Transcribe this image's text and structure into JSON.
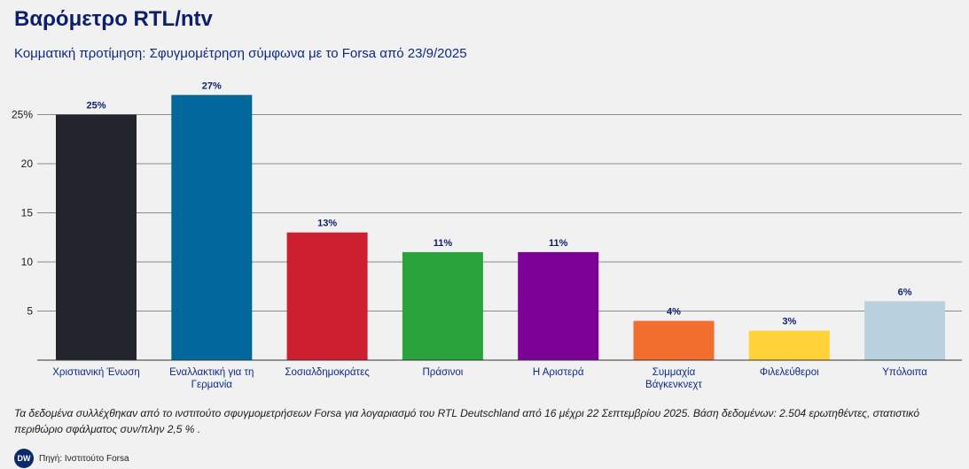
{
  "chart_data": {
    "type": "bar",
    "title": "Βαρόμετρο RTL/ntv",
    "subtitle": "Κομματική προτίμηση: Σφυγμομέτρηση σύμφωνα με το Forsa από 23/9/2025",
    "categories": [
      "Χριστιανική Ένωση",
      "Εναλλακτική για τη Γερμανία",
      "Σοσιαλδημοκράτες",
      "Πράσινοι",
      "Η Αριστερά",
      "Συμμαχία Βάγκενκνεχτ",
      "Φιλελεύθεροι",
      "Υπόλοιπα"
    ],
    "values": [
      25,
      27,
      13,
      11,
      11,
      4,
      3,
      6
    ],
    "value_labels": [
      "25%",
      "27%",
      "13%",
      "11%",
      "11%",
      "4%",
      "3%",
      "6%"
    ],
    "colors": [
      "#22252e",
      "#00689a",
      "#cc1f2f",
      "#2aa33c",
      "#7a0096",
      "#f26e2f",
      "#ffd23a",
      "#b9d0de"
    ],
    "yticks": [
      5,
      10,
      15,
      20,
      25
    ],
    "ytick_labels": [
      "5",
      "10",
      "15",
      "20",
      "25%"
    ],
    "ylim": [
      0,
      27
    ],
    "xlabel": "",
    "ylabel": ""
  },
  "note": "Τα δεδομένα συλλέχθηκαν από το ινστιτούτο σφυγμομετρήσεων Forsa για λογαριασμό του RTL Deutschland από 16 μέχρι 22 Σεπτεμβρίου 2025. Βάση δεδομένων: 2.504 ερωτηθέντες, στατιστικό περιθώριο σφάλματος συν/πλην 2,5 % .",
  "source": {
    "logo": "DW",
    "text": "Πηγή: Ινστιτούτο Forsa"
  }
}
